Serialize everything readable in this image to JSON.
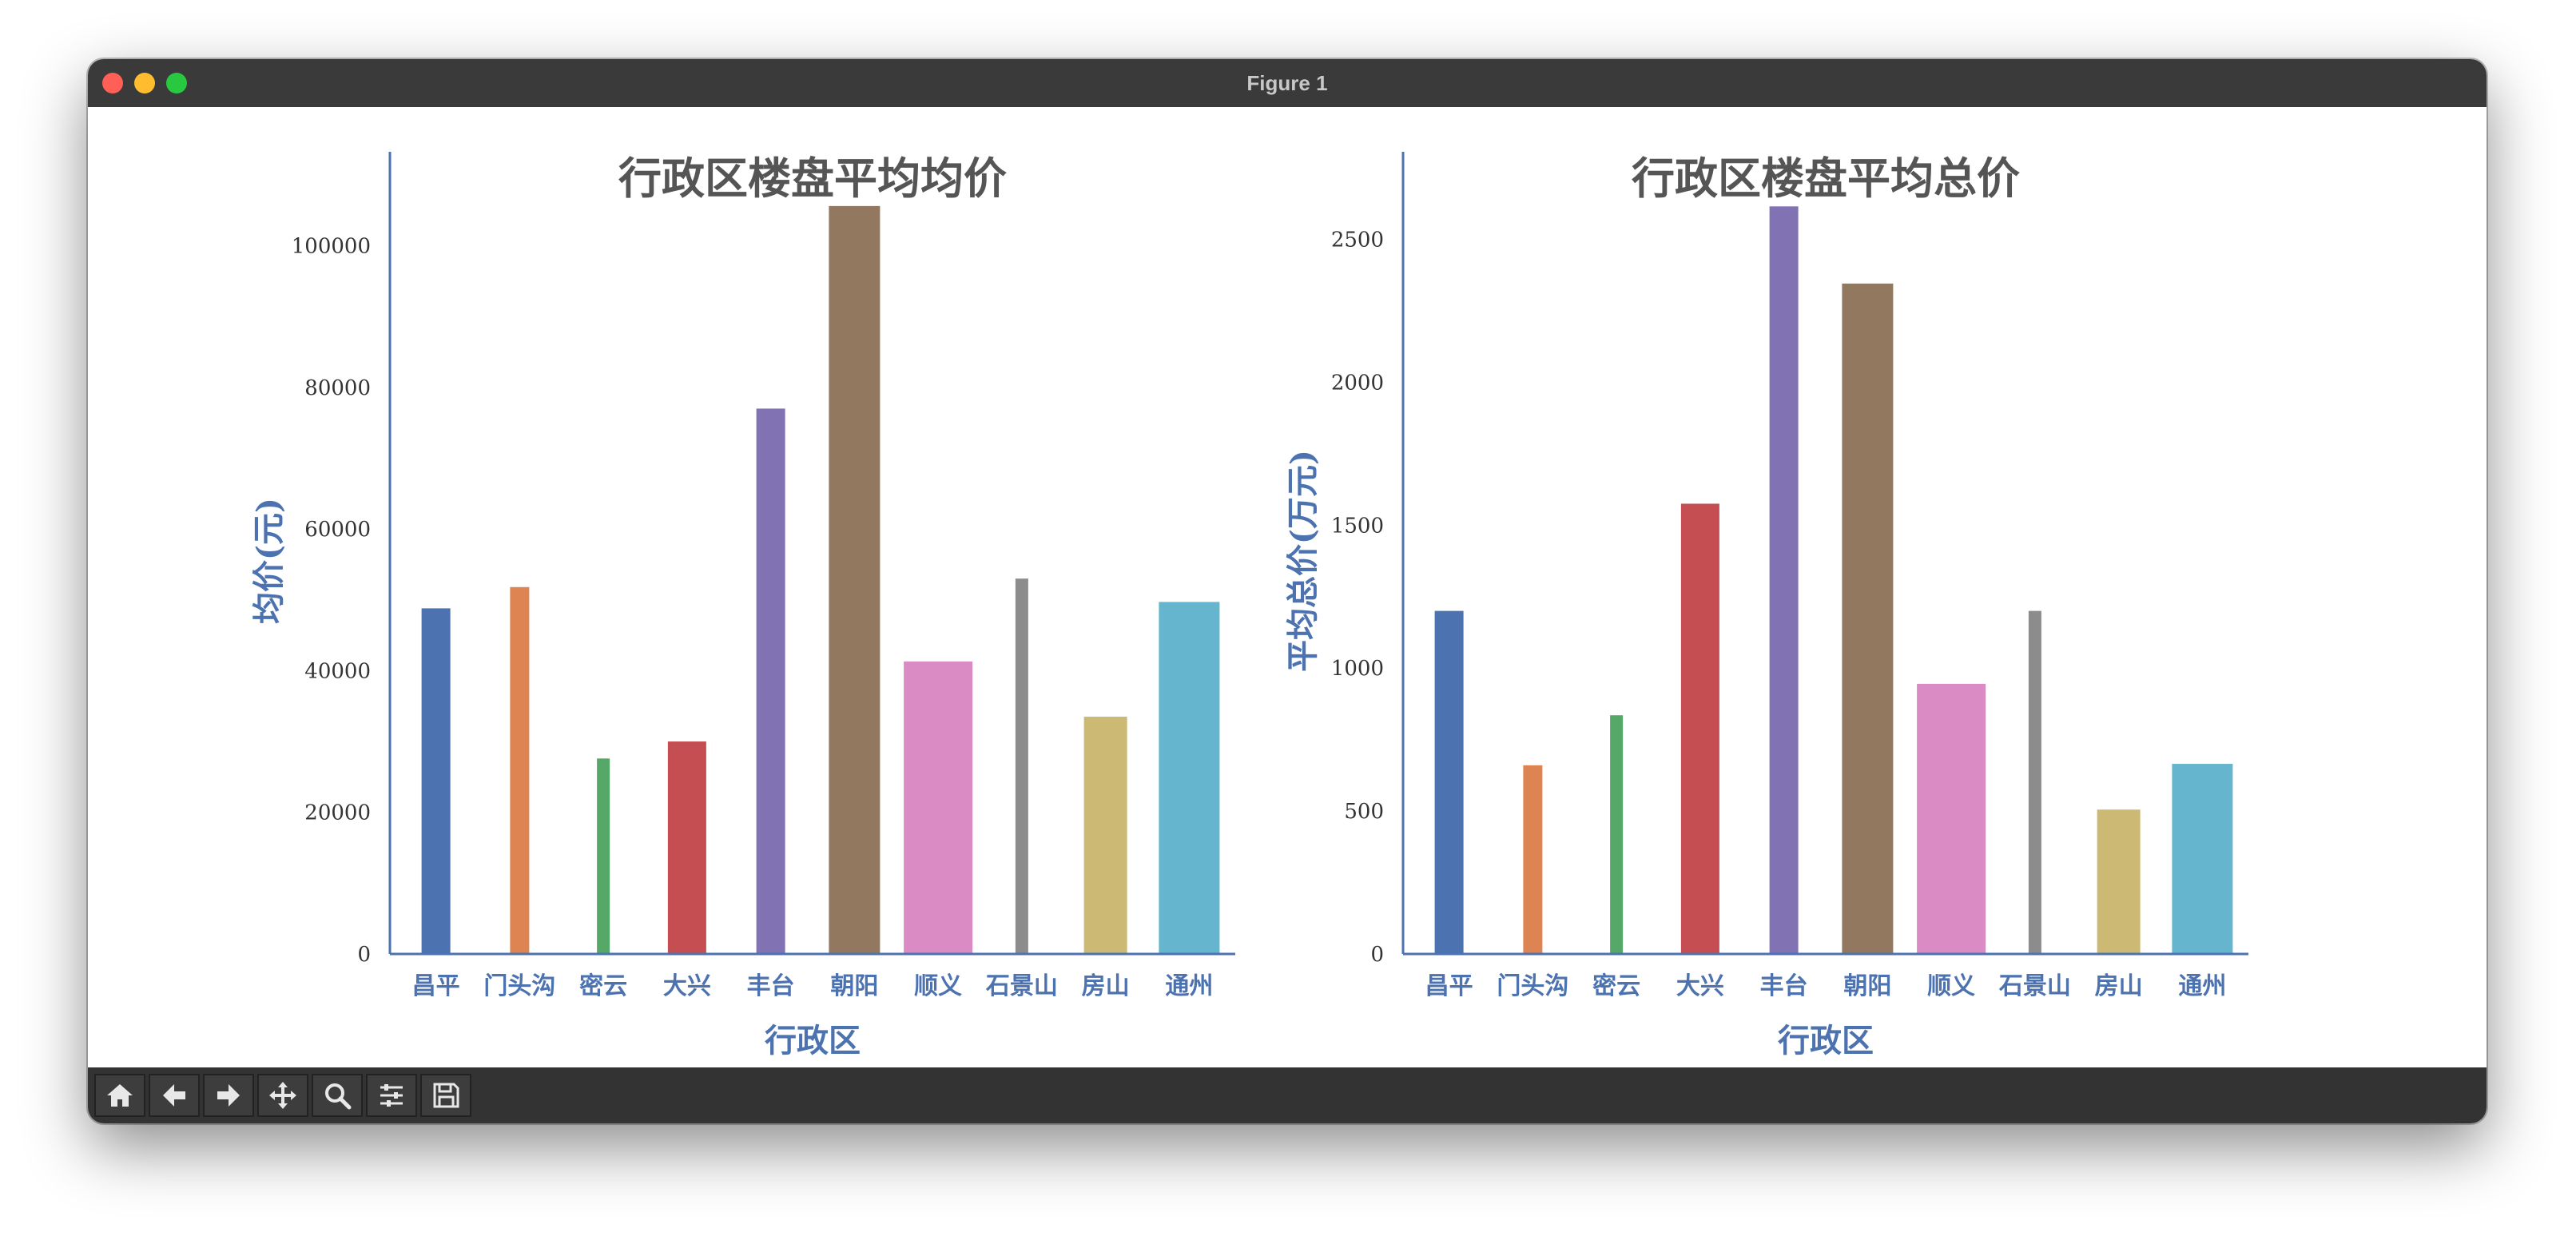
{
  "window": {
    "title": "Figure 1"
  },
  "toolbar": {
    "tools": [
      "home-icon",
      "back-icon",
      "forward-icon",
      "pan-icon",
      "zoom-icon",
      "configure-icon",
      "save-icon"
    ]
  },
  "colors": {
    "axis": "#4c72b0",
    "title": "#555555",
    "tick_text": "#333333",
    "bars": [
      "#4c72b0",
      "#dd8452",
      "#55a868",
      "#c44e52",
      "#8172b3",
      "#937860",
      "#da8bc3",
      "#8c8c8c",
      "#ccb974",
      "#64b5cd"
    ]
  },
  "chart_data": [
    {
      "type": "bar",
      "title": "行政区楼盘平均均价",
      "xlabel": "行政区",
      "ylabel": "均价(元)",
      "categories": [
        "昌平",
        "门头沟",
        "密云",
        "大兴",
        "丰台",
        "朝阳",
        "顺义",
        "石景山",
        "房山",
        "通州"
      ],
      "values": [
        48800,
        51800,
        27600,
        30000,
        77000,
        105600,
        41300,
        53000,
        33500,
        49700
      ],
      "yticks": [
        0,
        20000,
        40000,
        60000,
        80000,
        100000
      ],
      "ylim": [
        0,
        111000
      ],
      "grid": false
    },
    {
      "type": "bar",
      "title": "行政区楼盘平均总价",
      "xlabel": "行政区",
      "ylabel": "平均总价(万元)",
      "categories": [
        "昌平",
        "门头沟",
        "密云",
        "大兴",
        "丰台",
        "朝阳",
        "顺义",
        "石景山",
        "房山",
        "通州"
      ],
      "values": [
        1200,
        660,
        835,
        1575,
        2615,
        2345,
        945,
        1200,
        505,
        665
      ],
      "yticks": [
        0,
        500,
        1000,
        1500,
        2000,
        2500
      ],
      "ylim": [
        0,
        2750
      ],
      "grid": false
    }
  ]
}
